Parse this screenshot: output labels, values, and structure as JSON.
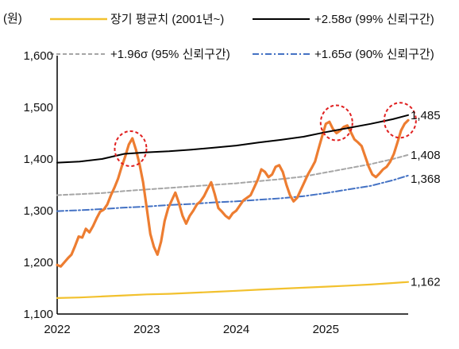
{
  "chart_data": {
    "type": "line",
    "ylabel": "(원)",
    "ylim": [
      1100,
      1600
    ],
    "yticks": [
      "1,600",
      "1,500",
      "1,400",
      "1,300",
      "1,200",
      "1,100"
    ],
    "ytick_values": [
      1600,
      1500,
      1400,
      1300,
      1200,
      1100
    ],
    "xlim": [
      2022.0,
      2025.92
    ],
    "xticks": [
      "2022",
      "2023",
      "2024",
      "2025"
    ],
    "xtick_values": [
      2022,
      2023,
      2024,
      2025
    ],
    "grid": false,
    "legend_position": "top",
    "series": [
      {
        "name": "장기 평균치 (2001년~)",
        "color": "#F2C12E",
        "style": "solid",
        "end_label": "1,162",
        "x": [
          2022.0,
          2022.25,
          2022.5,
          2022.75,
          2023.0,
          2023.25,
          2023.5,
          2023.75,
          2024.0,
          2024.25,
          2024.5,
          2024.75,
          2025.0,
          2025.25,
          2025.5,
          2025.75,
          2025.92
        ],
        "y": [
          1131,
          1132,
          1134,
          1136,
          1138,
          1139,
          1141,
          1143,
          1145,
          1147,
          1149,
          1151,
          1153,
          1155,
          1157,
          1160,
          1162
        ]
      },
      {
        "name": "+2.58σ (99% 신뢰구간)",
        "color": "#000000",
        "style": "solid",
        "end_label": "1,485",
        "x": [
          2022.0,
          2022.25,
          2022.5,
          2022.75,
          2023.0,
          2023.25,
          2023.5,
          2023.75,
          2024.0,
          2024.25,
          2024.5,
          2024.75,
          2025.0,
          2025.25,
          2025.5,
          2025.75,
          2025.92
        ],
        "y": [
          1393,
          1395,
          1400,
          1410,
          1413,
          1415,
          1418,
          1422,
          1426,
          1432,
          1437,
          1443,
          1452,
          1460,
          1468,
          1477,
          1485
        ]
      },
      {
        "name": "+1.96σ (95% 신뢰구간)",
        "color": "#A6A6A6",
        "style": "dashed",
        "end_label": "1,408",
        "x": [
          2022.0,
          2022.25,
          2022.5,
          2022.75,
          2023.0,
          2023.25,
          2023.5,
          2023.75,
          2024.0,
          2024.25,
          2024.5,
          2024.75,
          2025.0,
          2025.25,
          2025.5,
          2025.75,
          2025.92
        ],
        "y": [
          1330,
          1332,
          1334,
          1338,
          1341,
          1344,
          1347,
          1350,
          1353,
          1357,
          1361,
          1366,
          1374,
          1382,
          1390,
          1400,
          1408
        ]
      },
      {
        "name": "+1.65σ (90% 신뢰구간)",
        "color": "#4472C4",
        "style": "dashdot",
        "end_label": "1,368",
        "x": [
          2022.0,
          2022.25,
          2022.5,
          2022.75,
          2023.0,
          2023.25,
          2023.5,
          2023.75,
          2024.0,
          2024.25,
          2024.5,
          2024.75,
          2025.0,
          2025.25,
          2025.5,
          2025.75,
          2025.92
        ],
        "y": [
          1299,
          1301,
          1303,
          1306,
          1308,
          1311,
          1313,
          1316,
          1318,
          1321,
          1324,
          1328,
          1334,
          1341,
          1348,
          1359,
          1368
        ]
      },
      {
        "name": "",
        "color": "#ED7D31",
        "style": "solid",
        "x": [
          2022.0,
          2022.04,
          2022.08,
          2022.12,
          2022.16,
          2022.2,
          2022.24,
          2022.28,
          2022.32,
          2022.36,
          2022.4,
          2022.44,
          2022.48,
          2022.52,
          2022.56,
          2022.6,
          2022.64,
          2022.68,
          2022.72,
          2022.76,
          2022.8,
          2022.84,
          2022.88,
          2022.92,
          2022.96,
          2023.0,
          2023.04,
          2023.08,
          2023.12,
          2023.16,
          2023.2,
          2023.24,
          2023.28,
          2023.32,
          2023.36,
          2023.4,
          2023.44,
          2023.48,
          2023.52,
          2023.56,
          2023.6,
          2023.64,
          2023.68,
          2023.72,
          2023.76,
          2023.8,
          2023.84,
          2023.88,
          2023.92,
          2023.96,
          2024.0,
          2024.04,
          2024.08,
          2024.12,
          2024.16,
          2024.2,
          2024.24,
          2024.28,
          2024.32,
          2024.36,
          2024.4,
          2024.44,
          2024.48,
          2024.52,
          2024.56,
          2024.6,
          2024.64,
          2024.68,
          2024.72,
          2024.76,
          2024.8,
          2024.84,
          2024.88,
          2024.92,
          2024.96,
          2025.0,
          2025.04,
          2025.08,
          2025.12,
          2025.16,
          2025.2,
          2025.24,
          2025.28,
          2025.32,
          2025.36,
          2025.4,
          2025.44,
          2025.48,
          2025.52,
          2025.56,
          2025.6,
          2025.64,
          2025.68,
          2025.72,
          2025.76,
          2025.8,
          2025.84,
          2025.88,
          2025.92
        ],
        "y": [
          1195,
          1192,
          1200,
          1208,
          1215,
          1232,
          1250,
          1248,
          1265,
          1258,
          1270,
          1285,
          1298,
          1302,
          1312,
          1330,
          1345,
          1362,
          1385,
          1405,
          1428,
          1440,
          1418,
          1390,
          1355,
          1305,
          1255,
          1230,
          1215,
          1240,
          1280,
          1305,
          1320,
          1335,
          1315,
          1290,
          1275,
          1290,
          1300,
          1312,
          1318,
          1328,
          1342,
          1355,
          1332,
          1305,
          1298,
          1290,
          1285,
          1295,
          1300,
          1310,
          1320,
          1325,
          1330,
          1345,
          1360,
          1380,
          1375,
          1365,
          1370,
          1385,
          1388,
          1375,
          1350,
          1330,
          1318,
          1325,
          1340,
          1355,
          1370,
          1382,
          1395,
          1420,
          1445,
          1468,
          1472,
          1458,
          1450,
          1455,
          1462,
          1465,
          1452,
          1438,
          1432,
          1425,
          1405,
          1385,
          1370,
          1365,
          1372,
          1380,
          1385,
          1395,
          1410,
          1432,
          1455,
          1468,
          1475
        ]
      }
    ],
    "annotations": [
      {
        "type": "circle",
        "x": 2022.82,
        "y": 1420
      },
      {
        "type": "circle",
        "x": 2025.12,
        "y": 1470
      },
      {
        "type": "circle",
        "x": 2025.83,
        "y": 1475
      }
    ]
  }
}
